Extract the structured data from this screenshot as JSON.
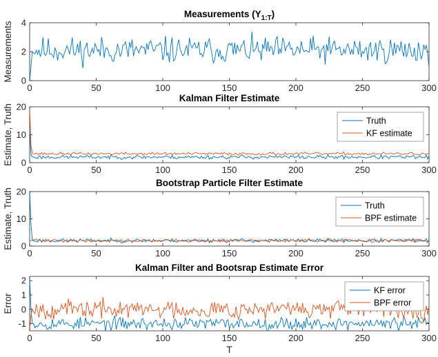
{
  "figure": {
    "xlabel": "T"
  },
  "colors": {
    "blue": "#0072BD",
    "orange": "#D95319",
    "axis": "#262626",
    "box": "#8c8c8c"
  },
  "chart_data": [
    {
      "type": "line",
      "title": "Measurements (Y",
      "title_sub": "1:T",
      "title_suffix": ")",
      "ylabel": "Measurements",
      "xlabel": "",
      "xlim": [
        0,
        300
      ],
      "ylim": [
        0,
        4
      ],
      "xticks": [
        0,
        50,
        100,
        150,
        200,
        250,
        300
      ],
      "yticks": [
        0,
        2,
        4
      ],
      "legend": null,
      "series": [
        {
          "color": "blue",
          "noise": {
            "kind": "series",
            "seed": 11,
            "base": 2.1,
            "amp": 0.45
          },
          "start": [
            0.0,
            1.0,
            2.0
          ]
        }
      ]
    },
    {
      "type": "line",
      "title": "Kalman Filter Estimate",
      "ylabel": "Estimate, Truth",
      "xlabel": "",
      "xlim": [
        0,
        300
      ],
      "ylim": [
        0,
        20
      ],
      "xticks": [
        0,
        50,
        100,
        150,
        200,
        250,
        300
      ],
      "yticks": [
        0,
        10,
        20
      ],
      "legend": "top-right",
      "series": [
        {
          "name": "Truth",
          "color": "blue",
          "noise": {
            "kind": "series",
            "seed": 23,
            "base": 2.0,
            "amp": 0.35
          },
          "start": [
            12.0,
            3.0,
            2.0
          ]
        },
        {
          "name": "KF estimate",
          "color": "orange",
          "noise": {
            "kind": "series",
            "seed": 37,
            "base": 3.2,
            "amp": 0.25
          },
          "start": [
            20.0,
            6.0,
            3.5
          ]
        }
      ]
    },
    {
      "type": "line",
      "title": "Bootstrap Particle Filter Estimate",
      "ylabel": "Estimate, Truth",
      "xlabel": "",
      "xlim": [
        0,
        300
      ],
      "ylim": [
        0,
        20
      ],
      "xticks": [
        0,
        50,
        100,
        150,
        200,
        250,
        300
      ],
      "yticks": [
        0,
        10,
        20
      ],
      "legend": "top-right",
      "series": [
        {
          "name": "Truth",
          "color": "blue",
          "noise": {
            "kind": "series",
            "seed": 23,
            "base": 2.0,
            "amp": 0.35
          },
          "start": [
            20.0,
            8.0,
            2.0
          ]
        },
        {
          "name": "BPF estimate",
          "color": "orange",
          "noise": {
            "kind": "series",
            "seed": 41,
            "base": 2.0,
            "amp": 0.3
          },
          "start": [
            2.0,
            2.0,
            2.1
          ]
        }
      ]
    },
    {
      "type": "line",
      "title": "Kalman Filter and Bootsrap Estimate Error",
      "ylabel": "Error",
      "xlabel": "T",
      "xlim": [
        0,
        300
      ],
      "ylim": [
        -1.5,
        2.3
      ],
      "xticks": [
        0,
        50,
        100,
        150,
        200,
        250,
        300
      ],
      "yticks": [
        -1,
        0,
        1,
        2
      ],
      "legend": "top-right",
      "series": [
        {
          "name": "KF error",
          "color": "blue",
          "noise": {
            "kind": "series",
            "seed": 53,
            "base": -1.0,
            "amp": 0.22
          },
          "start": [
            2.2,
            0.0,
            -1.0
          ]
        },
        {
          "name": "BPF error",
          "color": "orange",
          "noise": {
            "kind": "series",
            "seed": 67,
            "base": 0.0,
            "amp": 0.32
          },
          "start": [
            -1.5,
            -0.4,
            0.0
          ]
        }
      ]
    }
  ]
}
